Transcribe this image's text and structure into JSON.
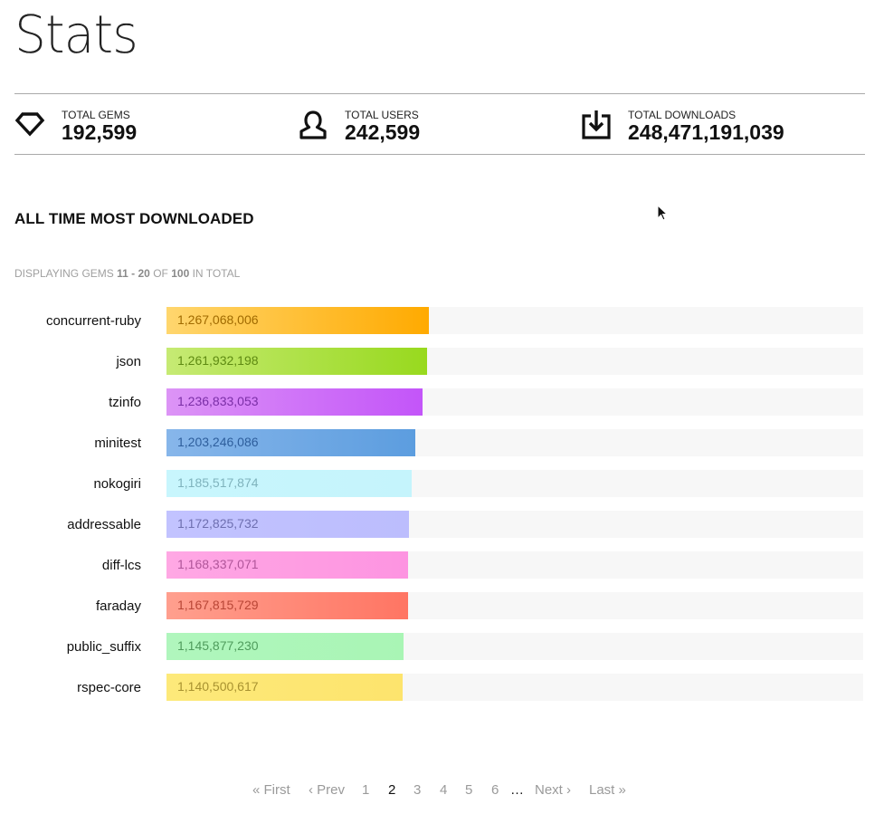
{
  "page": {
    "title": "Stats"
  },
  "stats": [
    {
      "label": "TOTAL GEMS",
      "value": "192,599",
      "icon": "gem-icon"
    },
    {
      "label": "TOTAL USERS",
      "value": "242,599",
      "icon": "user-icon"
    },
    {
      "label": "TOTAL DOWNLOADS",
      "value": "248,471,191,039",
      "icon": "download-icon"
    }
  ],
  "section": {
    "title": "ALL TIME MOST DOWNLOADED",
    "displaying_prefix": "DISPLAYING GEMS",
    "range": "11 - 20",
    "of_text": "OF",
    "total": "100",
    "suffix": "IN TOTAL"
  },
  "chart_data": {
    "type": "bar",
    "orientation": "horizontal",
    "title": "",
    "categories": [
      "concurrent-ruby",
      "json",
      "tzinfo",
      "minitest",
      "nokogiri",
      "addressable",
      "diff-lcs",
      "faraday",
      "public_suffix",
      "rspec-core"
    ],
    "values": [
      1267068006,
      1261932198,
      1236833053,
      1203246086,
      1185517874,
      1172825732,
      1168337071,
      1167815729,
      1145877230,
      1140500617
    ],
    "labels": [
      "1,267,068,006",
      "1,261,932,198",
      "1,236,833,053",
      "1,203,246,086",
      "1,185,517,874",
      "1,172,825,732",
      "1,168,337,071",
      "1,167,815,729",
      "1,145,877,230",
      "1,140,500,617"
    ],
    "xlim": [
      0,
      3370000000
    ],
    "colors": [
      {
        "from": "#ffd66e",
        "to": "#ffaa00",
        "text": "#a06a00"
      },
      {
        "from": "#c6ea74",
        "to": "#98d91e",
        "text": "#5e8a12"
      },
      {
        "from": "#dc94f6",
        "to": "#c355f9",
        "text": "#7a2ea6"
      },
      {
        "from": "#87b6ea",
        "to": "#5c9ddf",
        "text": "#2e5e9c"
      },
      {
        "from": "#c8f6fd",
        "to": "#c5f4fc",
        "text": "#7fb3bd"
      },
      {
        "from": "#c2c3ff",
        "to": "#bcbdfd",
        "text": "#6e6fb0"
      },
      {
        "from": "#ffa8e4",
        "to": "#fd94e1",
        "text": "#b0569a"
      },
      {
        "from": "#ff9f8e",
        "to": "#ff7563",
        "text": "#b84636"
      },
      {
        "from": "#b0f6bd",
        "to": "#a9f5b5",
        "text": "#4f9c5c"
      },
      {
        "from": "#fde97a",
        "to": "#fde46d",
        "text": "#a89230"
      }
    ],
    "grid": false,
    "legend": "none"
  },
  "pagination": {
    "first": "« First",
    "prev": "‹ Prev",
    "pages": [
      "1",
      "2",
      "3",
      "4",
      "5",
      "6"
    ],
    "current": "2",
    "gap": "…",
    "next": "Next ›",
    "last": "Last »"
  }
}
